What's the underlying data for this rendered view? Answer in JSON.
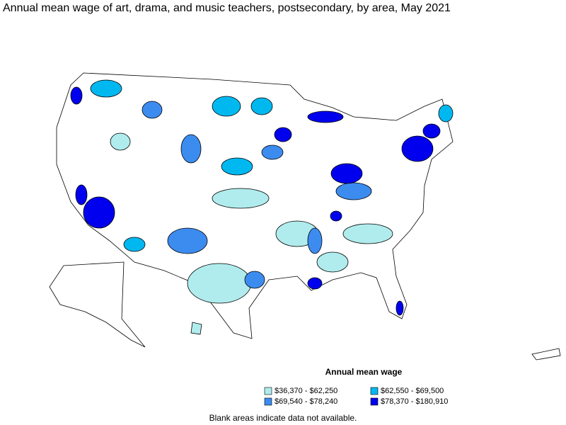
{
  "map": {
    "title": "Annual mean wage of art, drama, and music teachers, postsecondary, by area, May 2021",
    "legend": {
      "title": "Annual mean wage",
      "items": [
        {
          "label": "$36,370 - $62,250",
          "color": "#b0eced"
        },
        {
          "label": "$62,550 - $69,500",
          "color": "#00b8f0"
        },
        {
          "label": "$69,540 - $78,240",
          "color": "#3c8cf0"
        },
        {
          "label": "$78,370 - $180,910",
          "color": "#0000ee"
        }
      ]
    },
    "footnote": "Blank areas indicate data not available."
  }
}
